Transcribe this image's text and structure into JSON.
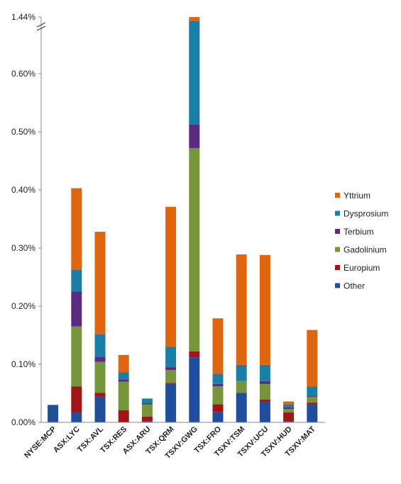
{
  "chart_data": {
    "type": "bar",
    "stacked": true,
    "categories": [
      "NYSE:MCP",
      "ASX:LYC",
      "TSX:AVL",
      "TSX:RES",
      "ASX:ARU",
      "TSX:QRM",
      "TSXV:GWG",
      "TSX:FRO",
      "TSXV:TSM",
      "TSXV:UCU",
      "TSXV:HUD",
      "TSXV:MAT"
    ],
    "y_axis": {
      "unit": "%",
      "tick_labels": [
        "0.00%",
        "0.10%",
        "0.20%",
        "0.30%",
        "0.40%",
        "0.50%",
        "0.60%",
        "1.44%"
      ],
      "axis_break": "between 0.60% and 1.44%"
    },
    "series": [
      {
        "name": "Other",
        "color": "#1f4e9c",
        "values": [
          0.03,
          0.017,
          0.044,
          0.0,
          0.002,
          0.066,
          0.112,
          0.018,
          0.051,
          0.036,
          0.002,
          0.031
        ]
      },
      {
        "name": "Europium",
        "color": "#a31515",
        "values": [
          0.0,
          0.045,
          0.007,
          0.021,
          0.008,
          0.002,
          0.01,
          0.013,
          0.0,
          0.003,
          0.015,
          0.003
        ]
      },
      {
        "name": "Gadolinium",
        "color": "#77953a",
        "values": [
          0.0,
          0.103,
          0.053,
          0.049,
          0.021,
          0.022,
          0.35,
          0.031,
          0.02,
          0.027,
          0.006,
          0.01
        ]
      },
      {
        "name": "Terbium",
        "color": "#5b2b82",
        "values": [
          0.0,
          0.06,
          0.009,
          0.004,
          0.002,
          0.005,
          0.041,
          0.004,
          0.0,
          0.005,
          0.003,
          0.002
        ]
      },
      {
        "name": "Dysprosium",
        "color": "#1a7fa6",
        "values": [
          0.0,
          0.038,
          0.039,
          0.012,
          0.008,
          0.035,
          0.178,
          0.018,
          0.028,
          0.028,
          0.005,
          0.016
        ]
      },
      {
        "name": "Yttrium",
        "color": "#e0650f",
        "values": [
          0.0,
          0.14,
          0.176,
          0.03,
          0.0,
          0.241,
          0.009,
          0.095,
          0.19,
          0.189,
          0.005,
          0.097
        ]
      }
    ],
    "legend": {
      "position": "right",
      "order": [
        "Yttrium",
        "Dysprosium",
        "Terbium",
        "Gadolinium",
        "Europium",
        "Other"
      ]
    },
    "grid": false
  }
}
